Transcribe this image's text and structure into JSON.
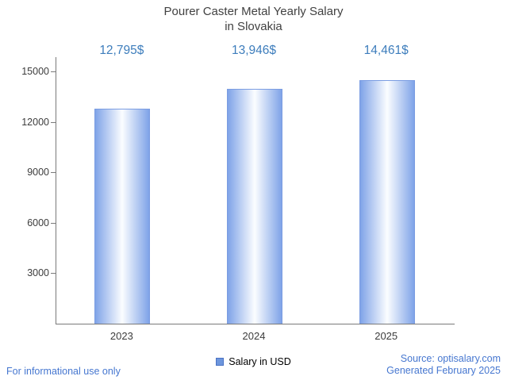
{
  "title": {
    "line1": "Pourer Caster Metal Yearly Salary",
    "line2": "in Slovakia"
  },
  "chart_data": {
    "type": "bar",
    "title": "Pourer Caster Metal Yearly Salary in Slovakia",
    "categories": [
      "2023",
      "2024",
      "2025"
    ],
    "values": [
      12795,
      13946,
      14461
    ],
    "value_labels": [
      "12,795$",
      "13,946$",
      "14,461$"
    ],
    "xlabel": "",
    "ylabel": "",
    "ylim": [
      0,
      15000
    ],
    "yticks": [
      3000,
      6000,
      9000,
      12000,
      15000
    ],
    "grid": false,
    "legend_position": "bottom",
    "series_name": "Salary in USD",
    "colors": {
      "bar_edge": "#7fa3e8",
      "bar_center": "#fbfdff",
      "value_label": "#3d7dbc",
      "footer_blue": "#4677d0",
      "legend_swatch": "#6d96dd"
    }
  },
  "legend": {
    "label": "Salary in USD"
  },
  "footer": {
    "left": "For informational use only",
    "source": "Source: optisalary.com",
    "generated": "Generated February 2025"
  }
}
